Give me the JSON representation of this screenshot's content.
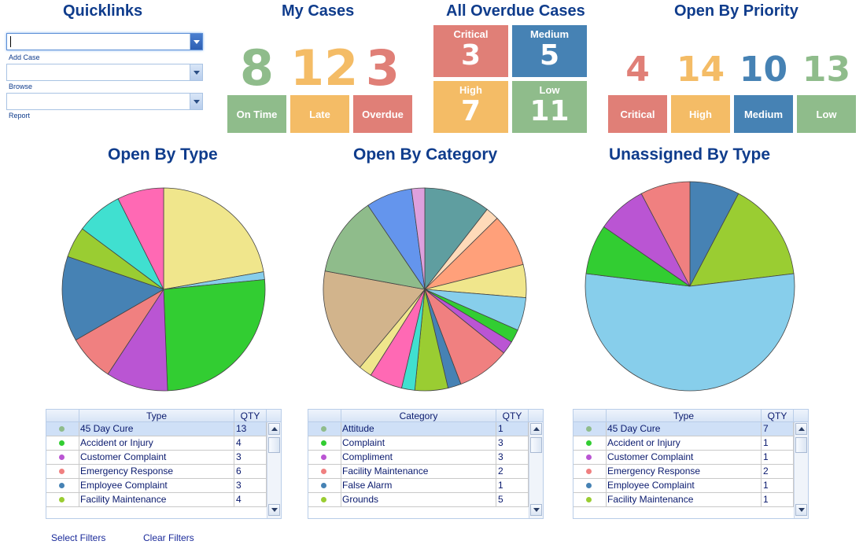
{
  "colors": {
    "green": "#8fbc8b",
    "orange": "#f4bc66",
    "red": "#e07f77",
    "blue": "#4682b4",
    "heading": "#0f3c8c"
  },
  "quicklinks": {
    "title": "Quicklinks",
    "items": [
      {
        "label": "Add Case",
        "value": ""
      },
      {
        "label": "Browse",
        "value": ""
      },
      {
        "label": "Report",
        "value": ""
      }
    ]
  },
  "my_cases": {
    "title": "My Cases",
    "stats": [
      {
        "value": "8",
        "label": "On Time"
      },
      {
        "value": "12",
        "label": "Late"
      },
      {
        "value": "3",
        "label": "Overdue"
      }
    ]
  },
  "overdue": {
    "title": "All Overdue Cases",
    "tiles": [
      {
        "label": "Critical",
        "value": "3"
      },
      {
        "label": "Medium",
        "value": "5"
      },
      {
        "label": "High",
        "value": "7"
      },
      {
        "label": "Low",
        "value": "11"
      }
    ]
  },
  "priority": {
    "title": "Open By Priority",
    "stats": [
      {
        "value": "4",
        "label": "Critical"
      },
      {
        "value": "14",
        "label": "High"
      },
      {
        "value": "10",
        "label": "Medium"
      },
      {
        "value": "13",
        "label": "Low"
      }
    ]
  },
  "chart_data": [
    {
      "type": "pie",
      "title": "Open By Type",
      "slices": [
        {
          "value": 18,
          "color": "#f0e68c"
        },
        {
          "value": 1,
          "color": "#87ceeb"
        },
        {
          "value": 21,
          "color": "#32cd32"
        },
        {
          "value": 8,
          "color": "#ba55d3"
        },
        {
          "value": 6,
          "color": "#f08080"
        },
        {
          "value": 11,
          "color": "#4682b4"
        },
        {
          "value": 4,
          "color": "#9acd32"
        },
        {
          "value": 6,
          "color": "#40e0d0"
        },
        {
          "value": 6,
          "color": "#ff69b4"
        }
      ]
    },
    {
      "type": "pie",
      "title": "Open By Category",
      "slices": [
        {
          "value": 10,
          "color": "#5f9ea0"
        },
        {
          "value": 2,
          "color": "#ffdab9"
        },
        {
          "value": 8,
          "color": "#ffa07a"
        },
        {
          "value": 5,
          "color": "#f0e68c"
        },
        {
          "value": 5,
          "color": "#87ceeb"
        },
        {
          "value": 2,
          "color": "#32cd32"
        },
        {
          "value": 2,
          "color": "#ba55d3"
        },
        {
          "value": 8,
          "color": "#f08080"
        },
        {
          "value": 2,
          "color": "#4682b4"
        },
        {
          "value": 5,
          "color": "#9acd32"
        },
        {
          "value": 2,
          "color": "#40e0d0"
        },
        {
          "value": 5,
          "color": "#ff69b4"
        },
        {
          "value": 2,
          "color": "#f0e68c"
        },
        {
          "value": 16,
          "color": "#d2b48c"
        },
        {
          "value": 12,
          "color": "#8fbc8b"
        },
        {
          "value": 7,
          "color": "#6495ed"
        },
        {
          "value": 2,
          "color": "#dda0dd"
        }
      ]
    },
    {
      "type": "pie",
      "title": "Unassigned By Type",
      "slices": [
        {
          "value": 1,
          "color": "#4682b4"
        },
        {
          "value": 2,
          "color": "#9acd32"
        },
        {
          "value": 7,
          "color": "#87ceeb"
        },
        {
          "value": 1,
          "color": "#32cd32"
        },
        {
          "value": 1,
          "color": "#ba55d3"
        },
        {
          "value": 1,
          "color": "#f08080"
        }
      ]
    }
  ],
  "grids": [
    {
      "col_label": "Type",
      "qty_label": "QTY",
      "rows": [
        {
          "name": "45 Day Cure",
          "qty": "13",
          "dot": "#8fbc8b"
        },
        {
          "name": "Accident or Injury",
          "qty": "4",
          "dot": "#32cd32"
        },
        {
          "name": "Customer Complaint",
          "qty": "3",
          "dot": "#ba55d3"
        },
        {
          "name": "Emergency Response",
          "qty": "6",
          "dot": "#f08080"
        },
        {
          "name": "Employee Complaint",
          "qty": "3",
          "dot": "#4682b4"
        },
        {
          "name": "Facility Maintenance",
          "qty": "4",
          "dot": "#9acd32"
        }
      ]
    },
    {
      "col_label": "Category",
      "qty_label": "QTY",
      "rows": [
        {
          "name": "Attitude",
          "qty": "1",
          "dot": "#8fbc8b"
        },
        {
          "name": "Complaint",
          "qty": "3",
          "dot": "#32cd32"
        },
        {
          "name": "Compliment",
          "qty": "3",
          "dot": "#ba55d3"
        },
        {
          "name": "Facility Maintenance",
          "qty": "2",
          "dot": "#f08080"
        },
        {
          "name": "False Alarm",
          "qty": "1",
          "dot": "#4682b4"
        },
        {
          "name": "Grounds",
          "qty": "5",
          "dot": "#9acd32"
        }
      ]
    },
    {
      "col_label": "Type",
      "qty_label": "QTY",
      "rows": [
        {
          "name": "45 Day Cure",
          "qty": "7",
          "dot": "#8fbc8b"
        },
        {
          "name": "Accident or Injury",
          "qty": "1",
          "dot": "#32cd32"
        },
        {
          "name": "Customer Complaint",
          "qty": "1",
          "dot": "#ba55d3"
        },
        {
          "name": "Emergency Response",
          "qty": "2",
          "dot": "#f08080"
        },
        {
          "name": "Employee Complaint",
          "qty": "1",
          "dot": "#4682b4"
        },
        {
          "name": "Facility Maintenance",
          "qty": "1",
          "dot": "#9acd32"
        }
      ]
    }
  ],
  "footer": {
    "select_filters": "Select Filters",
    "clear_filters": "Clear Filters"
  }
}
